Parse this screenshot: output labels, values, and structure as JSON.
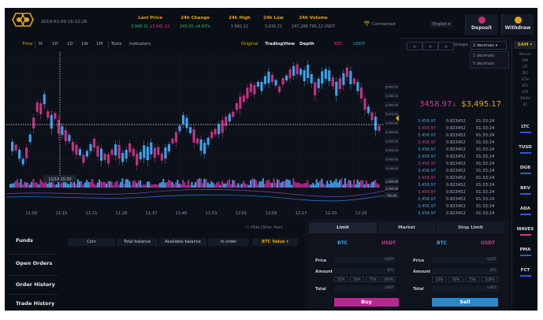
{
  "header": {
    "datetime": "2019-01-09 16:12:26",
    "stats": [
      {
        "label": "Last Price",
        "value_a": "3,908.31",
        "value_b": "$3,941.22"
      },
      {
        "label": "24h Change",
        "value_a": "245.00",
        "value_b": "+6.83%"
      },
      {
        "label": "24h High",
        "value": "3,982.12"
      },
      {
        "label": "24h Low",
        "value": "3,630.21"
      },
      {
        "label": "24h Volume",
        "value": "247,286,795.22 USDT"
      }
    ],
    "connection_status": "Connected",
    "language": "English",
    "deposit_label": "Deposit",
    "withdraw_label": "Withdraw"
  },
  "toolbar": {
    "intervals": [
      "Time",
      "M",
      "1H",
      "1D",
      "1W",
      "1M",
      "Tools",
      "Indicators"
    ],
    "views": [
      "Original",
      "TradingView",
      "Depth"
    ],
    "pair_a": "BTC",
    "pair_b": "USDT"
  },
  "chart": {
    "cursor_time": "12/14 15:50",
    "time_labels": [
      "11:05",
      "11:15",
      "11:21",
      "11:29",
      "11:37",
      "11:45",
      "11:53",
      "12:01",
      "12:09",
      "12:17",
      "12:20",
      "12:29"
    ],
    "price_tags": [
      "3,490.00",
      "3,485.50",
      "3,480.00",
      "3,470.00",
      "3,465.00",
      "3,460.00",
      "3,455.00",
      "3,450.00",
      "3,445.00",
      "3,440.00"
    ],
    "volume_tags": [
      "1,350.00",
      "1,200.00",
      "750.00"
    ]
  },
  "orderbook": {
    "groups_label": "Groups",
    "groups_selected": "2 decimals",
    "groups_options": [
      "1 decimals",
      "0 decimals"
    ],
    "last_price": "3458.97",
    "last_price_usd": "$3,495.17",
    "rows": [
      {
        "price": "3,458.97",
        "qty": "0.823452",
        "time": "01:33:24",
        "side": "buy"
      },
      {
        "price": "3,458.97",
        "qty": "0.823452",
        "time": "01:33:24",
        "side": "sell"
      },
      {
        "price": "3,458.97",
        "qty": "0.823452",
        "time": "01:33:24",
        "side": "buy"
      },
      {
        "price": "3,458.97",
        "qty": "0.823452",
        "time": "01:33:24",
        "side": "sell"
      },
      {
        "price": "3,458.97",
        "qty": "0.823452",
        "time": "01:33:24",
        "side": "buy"
      },
      {
        "price": "3,458.97",
        "qty": "0.823452",
        "time": "01:33:24",
        "side": "buy"
      },
      {
        "price": "3,458.97",
        "qty": "0.823452",
        "time": "01:33:24",
        "side": "sell"
      },
      {
        "price": "3,458.97",
        "qty": "0.823452",
        "time": "01:33:24",
        "side": "buy"
      },
      {
        "price": "3,458.97",
        "qty": "0.823452",
        "time": "01:33:24",
        "side": "sell"
      },
      {
        "price": "3,458.97",
        "qty": "0.823452",
        "time": "01:33:24",
        "side": "buy"
      },
      {
        "price": "3,458.97",
        "qty": "0.823452",
        "time": "01:33:24",
        "side": "sell"
      },
      {
        "price": "3,458.97",
        "qty": "0.823452",
        "time": "01:33:24",
        "side": "buy"
      },
      {
        "price": "3,458.97",
        "qty": "0.823452",
        "time": "01:33:24",
        "side": "buy"
      },
      {
        "price": "3,458.97",
        "qty": "0.823452",
        "time": "01:33:24",
        "side": "buy"
      }
    ]
  },
  "coins": {
    "selected": "SAM",
    "small_list": [
      "Bitcoin",
      "SMI",
      "LTC",
      "ZEC",
      "ETH",
      "BTC",
      "SYS",
      "DASH",
      "EC"
    ],
    "items": [
      {
        "name": "LTC",
        "bar": "blue"
      },
      {
        "name": "TUSD",
        "bar": "blue"
      },
      {
        "name": "DGB",
        "bar": "blue"
      },
      {
        "name": "BKV",
        "bar": "blue"
      },
      {
        "name": "ADA",
        "bar": "blue"
      },
      {
        "name": "WAVES",
        "bar": "magenta"
      },
      {
        "name": "PMA",
        "bar": "blue"
      },
      {
        "name": "FCT",
        "bar": "blue"
      }
    ]
  },
  "bottom": {
    "tabs": [
      "Funds",
      "Open Orders",
      "Order History",
      "Trade History"
    ],
    "hide_other_pairs": "Hide Other Pairs",
    "columns": [
      "Coin",
      "Total balance",
      "Available balance",
      "In order",
      "BTC Value"
    ]
  },
  "trade": {
    "tabs": [
      "Limit",
      "Market",
      "Stop Limit"
    ],
    "buy": {
      "base": "BTC",
      "quote": "USDT",
      "price_label": "Price",
      "amount_label": "Amount",
      "total_label": "Total",
      "price_unit": "USDT",
      "amount_unit": "BTC",
      "total_unit": "USDT",
      "pcts": [
        "25%",
        "50%",
        "75%",
        "100%"
      ],
      "button": "Buy"
    },
    "sell": {
      "base": "BTC",
      "quote": "USDT",
      "price_label": "Price",
      "amount_label": "Amount",
      "total_label": "Total",
      "price_unit": "USDT",
      "amount_unit": "BTC",
      "total_unit": "USDT",
      "pcts": [
        "25%",
        "50%",
        "75%",
        "100%"
      ],
      "button": "Sell"
    }
  },
  "colors": {
    "accent": "#e0a70d",
    "buy": "#3ba2ec",
    "sell": "#d23a8f"
  }
}
